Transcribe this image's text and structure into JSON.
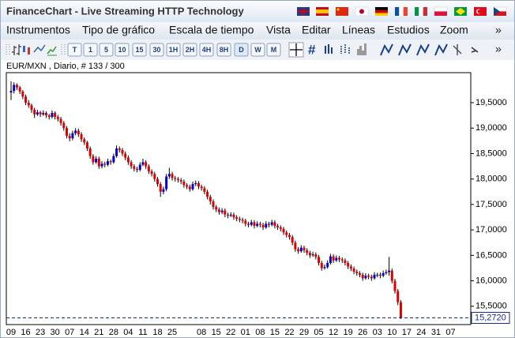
{
  "window": {
    "title": "FinanceChart - Live Streaming HTTP Technology"
  },
  "menu": [
    "Instrumentos",
    "Tipo de gráfico",
    "Escala de tiempo",
    "Vista",
    "Editar",
    "Líneas",
    "Estudios",
    "Zoom",
    "»"
  ],
  "toolbar": {
    "buttons": [
      "T",
      "1",
      "5",
      "10",
      "15",
      "30",
      "1H",
      "2H",
      "4H",
      "8H",
      "D",
      "W",
      "M"
    ],
    "more": "»"
  },
  "chart_data": {
    "type": "candlestick",
    "title": "EUR/MXN , Diario, # 133 / 300",
    "up_color": "#0000cc",
    "down_color": "#dd0000",
    "wick_color": "#000000",
    "ylim": [
      15.14,
      20.09
    ],
    "yticks": [
      {
        "value": 15.5,
        "label": "15,5000"
      },
      {
        "value": 16,
        "label": "16,0000"
      },
      {
        "value": 16.5,
        "label": "16,5000"
      },
      {
        "value": 17,
        "label": "17,0000"
      },
      {
        "value": 17.5,
        "label": "17,5000"
      },
      {
        "value": 18,
        "label": "18,0000"
      },
      {
        "value": 18.5,
        "label": "18,5000"
      },
      {
        "value": 19,
        "label": "19,0000"
      },
      {
        "value": 19.5,
        "label": "19,5000"
      }
    ],
    "last_price": {
      "value": 15.272,
      "label": "15,2720"
    },
    "categories": [
      "09",
      null,
      null,
      null,
      null,
      "16",
      null,
      null,
      null,
      null,
      "23",
      null,
      null,
      null,
      null,
      "30",
      null,
      null,
      null,
      null,
      "07",
      null,
      null,
      null,
      null,
      "14",
      null,
      null,
      null,
      null,
      "21",
      null,
      null,
      null,
      null,
      "28",
      null,
      null,
      null,
      null,
      "04",
      null,
      null,
      null,
      null,
      "11",
      null,
      null,
      null,
      null,
      "18",
      null,
      null,
      null,
      null,
      "25",
      null,
      null,
      null,
      null,
      null,
      null,
      null,
      null,
      null,
      "08",
      null,
      null,
      null,
      null,
      "15",
      null,
      null,
      null,
      null,
      "22",
      null,
      null,
      null,
      null,
      "01",
      null,
      null,
      null,
      null,
      "08",
      null,
      null,
      null,
      null,
      "15",
      null,
      null,
      null,
      null,
      "22",
      null,
      null,
      null,
      null,
      "29",
      null,
      null,
      null,
      null,
      "05",
      null,
      null,
      null,
      null,
      "12",
      null,
      null,
      null,
      null,
      "19",
      null,
      null,
      null,
      null,
      "26",
      null,
      null,
      null,
      null,
      "03",
      null,
      null,
      null,
      null,
      "10",
      null,
      null,
      null,
      null,
      "17",
      null,
      null,
      null,
      null,
      "24",
      null,
      null,
      null,
      null,
      "31",
      null,
      null,
      null,
      null,
      "07"
    ],
    "ohlc": [
      [
        19.7,
        19.92,
        19.55,
        19.73
      ],
      [
        19.73,
        19.9,
        19.68,
        19.85
      ],
      [
        19.85,
        19.88,
        19.75,
        19.8
      ],
      [
        19.8,
        19.83,
        19.67,
        19.72
      ],
      [
        19.72,
        19.75,
        19.57,
        19.62
      ],
      [
        19.62,
        19.66,
        19.45,
        19.5
      ],
      [
        19.5,
        19.55,
        19.4,
        19.45
      ],
      [
        19.45,
        19.48,
        19.3,
        19.36
      ],
      [
        19.36,
        19.4,
        19.2,
        19.27
      ],
      [
        19.27,
        19.36,
        19.24,
        19.31
      ],
      [
        19.31,
        19.34,
        19.22,
        19.27
      ],
      [
        19.27,
        19.35,
        19.24,
        19.3
      ],
      [
        19.3,
        19.33,
        19.2,
        19.25
      ],
      [
        19.25,
        19.28,
        19.17,
        19.22
      ],
      [
        19.22,
        19.35,
        19.19,
        19.3
      ],
      [
        19.3,
        19.33,
        19.17,
        19.22
      ],
      [
        19.22,
        19.26,
        19.13,
        19.18
      ],
      [
        19.18,
        19.22,
        19.05,
        19.1
      ],
      [
        19.1,
        19.14,
        18.95,
        19.0
      ],
      [
        19.0,
        19.04,
        18.8,
        18.85
      ],
      [
        18.85,
        18.9,
        18.74,
        18.8
      ],
      [
        18.8,
        18.95,
        18.76,
        18.9
      ],
      [
        18.9,
        19.0,
        18.86,
        18.95
      ],
      [
        18.95,
        18.99,
        18.83,
        18.88
      ],
      [
        18.88,
        18.92,
        18.73,
        18.78
      ],
      [
        18.78,
        18.82,
        18.67,
        18.72
      ],
      [
        18.72,
        18.75,
        18.55,
        18.6
      ],
      [
        18.6,
        18.64,
        18.4,
        18.45
      ],
      [
        18.45,
        18.49,
        18.28,
        18.33
      ],
      [
        18.33,
        18.45,
        18.3,
        18.4
      ],
      [
        18.4,
        18.44,
        18.2,
        18.25
      ],
      [
        18.25,
        18.35,
        18.21,
        18.3
      ],
      [
        18.3,
        18.34,
        18.23,
        18.28
      ],
      [
        18.28,
        18.4,
        18.25,
        18.35
      ],
      [
        18.35,
        18.38,
        18.28,
        18.33
      ],
      [
        18.33,
        18.5,
        18.3,
        18.45
      ],
      [
        18.45,
        18.66,
        18.42,
        18.6
      ],
      [
        18.6,
        18.64,
        18.52,
        18.57
      ],
      [
        18.57,
        18.61,
        18.45,
        18.5
      ],
      [
        18.5,
        18.54,
        18.37,
        18.42
      ],
      [
        18.42,
        18.46,
        18.28,
        18.33
      ],
      [
        18.33,
        18.37,
        18.2,
        18.25
      ],
      [
        18.25,
        18.29,
        18.15,
        18.2
      ],
      [
        18.2,
        18.24,
        18.13,
        18.18
      ],
      [
        18.18,
        18.33,
        18.15,
        18.28
      ],
      [
        18.28,
        18.4,
        18.25,
        18.33
      ],
      [
        18.33,
        18.37,
        18.2,
        18.25
      ],
      [
        18.25,
        18.29,
        18.1,
        18.15
      ],
      [
        18.15,
        18.19,
        18.05,
        18.1
      ],
      [
        18.1,
        18.14,
        17.95,
        18.0
      ],
      [
        18.0,
        18.04,
        17.85,
        17.9
      ],
      [
        17.9,
        17.94,
        17.65,
        17.75
      ],
      [
        17.75,
        17.85,
        17.7,
        17.8
      ],
      [
        17.8,
        18.1,
        17.76,
        18.05
      ],
      [
        18.05,
        18.22,
        18.0,
        18.1
      ],
      [
        18.1,
        18.14,
        17.97,
        18.02
      ],
      [
        18.02,
        18.06,
        17.95,
        18.0
      ],
      [
        18.0,
        18.04,
        17.93,
        17.98
      ],
      [
        17.98,
        18.02,
        17.9,
        17.95
      ],
      [
        17.95,
        17.99,
        17.83,
        17.88
      ],
      [
        17.88,
        17.92,
        17.8,
        17.85
      ],
      [
        17.85,
        17.89,
        17.75,
        17.8
      ],
      [
        17.8,
        17.95,
        17.77,
        17.9
      ],
      [
        17.9,
        17.97,
        17.86,
        17.92
      ],
      [
        17.92,
        17.96,
        17.8,
        17.85
      ],
      [
        17.85,
        17.89,
        17.77,
        17.82
      ],
      [
        17.82,
        17.86,
        17.7,
        17.75
      ],
      [
        17.75,
        17.79,
        17.6,
        17.65
      ],
      [
        17.65,
        17.69,
        17.5,
        17.56
      ],
      [
        17.56,
        17.6,
        17.4,
        17.45
      ],
      [
        17.45,
        17.49,
        17.35,
        17.4
      ],
      [
        17.4,
        17.44,
        17.3,
        17.35
      ],
      [
        17.35,
        17.43,
        17.31,
        17.38
      ],
      [
        17.38,
        17.42,
        17.25,
        17.3
      ],
      [
        17.3,
        17.34,
        17.23,
        17.28
      ],
      [
        17.28,
        17.35,
        17.25,
        17.3
      ],
      [
        17.3,
        17.34,
        17.2,
        17.25
      ],
      [
        17.25,
        17.29,
        17.17,
        17.22
      ],
      [
        17.22,
        17.26,
        17.15,
        17.2
      ],
      [
        17.2,
        17.24,
        17.13,
        17.18
      ],
      [
        17.18,
        17.22,
        17.07,
        17.12
      ],
      [
        17.12,
        17.16,
        17.05,
        17.1
      ],
      [
        17.1,
        17.2,
        17.07,
        17.15
      ],
      [
        17.15,
        17.19,
        17.03,
        17.08
      ],
      [
        17.08,
        17.17,
        17.05,
        17.12
      ],
      [
        17.12,
        17.16,
        17.05,
        17.1
      ],
      [
        17.1,
        17.14,
        17.0,
        17.05
      ],
      [
        17.05,
        17.17,
        17.02,
        17.12
      ],
      [
        17.12,
        17.16,
        17.05,
        17.1
      ],
      [
        17.1,
        17.2,
        17.07,
        17.15
      ],
      [
        17.15,
        17.19,
        17.03,
        17.08
      ],
      [
        17.08,
        17.12,
        17.0,
        17.05
      ],
      [
        17.05,
        17.09,
        16.97,
        17.02
      ],
      [
        17.02,
        17.06,
        16.9,
        16.95
      ],
      [
        16.95,
        16.99,
        16.85,
        16.9
      ],
      [
        16.9,
        16.94,
        16.81,
        16.86
      ],
      [
        16.86,
        16.9,
        16.7,
        16.75
      ],
      [
        16.75,
        16.79,
        16.57,
        16.62
      ],
      [
        16.62,
        16.66,
        16.53,
        16.58
      ],
      [
        16.58,
        16.7,
        16.55,
        16.65
      ],
      [
        16.65,
        16.69,
        16.55,
        16.6
      ],
      [
        16.6,
        16.64,
        16.5,
        16.55
      ],
      [
        16.55,
        16.59,
        16.45,
        16.5
      ],
      [
        16.5,
        16.57,
        16.47,
        16.52
      ],
      [
        16.52,
        16.56,
        16.42,
        16.47
      ],
      [
        16.47,
        16.51,
        16.3,
        16.35
      ],
      [
        16.35,
        16.39,
        16.2,
        16.25
      ],
      [
        16.25,
        16.32,
        16.22,
        16.27
      ],
      [
        16.27,
        16.4,
        16.24,
        16.35
      ],
      [
        16.35,
        16.53,
        16.32,
        16.48
      ],
      [
        16.48,
        16.52,
        16.35,
        16.4
      ],
      [
        16.4,
        16.5,
        16.37,
        16.45
      ],
      [
        16.45,
        16.49,
        16.37,
        16.42
      ],
      [
        16.42,
        16.46,
        16.35,
        16.4
      ],
      [
        16.4,
        16.44,
        16.3,
        16.35
      ],
      [
        16.35,
        16.39,
        16.23,
        16.28
      ],
      [
        16.28,
        16.32,
        16.19,
        16.24
      ],
      [
        16.24,
        16.28,
        16.13,
        16.18
      ],
      [
        16.18,
        16.22,
        16.1,
        16.15
      ],
      [
        16.15,
        16.19,
        16.07,
        16.12
      ],
      [
        16.12,
        16.16,
        16.0,
        16.05
      ],
      [
        16.05,
        16.15,
        16.02,
        16.1
      ],
      [
        16.1,
        16.14,
        16.03,
        16.08
      ],
      [
        16.08,
        16.12,
        16.0,
        16.05
      ],
      [
        16.05,
        16.17,
        16.02,
        16.12
      ],
      [
        16.12,
        16.16,
        16.07,
        16.12
      ],
      [
        16.12,
        16.16,
        16.05,
        16.1
      ],
      [
        16.1,
        16.2,
        16.07,
        16.15
      ],
      [
        16.15,
        16.22,
        16.12,
        16.17
      ],
      [
        16.17,
        16.47,
        16.1,
        16.2
      ],
      [
        16.2,
        16.24,
        15.95,
        16.0
      ],
      [
        16.0,
        16.04,
        15.75,
        15.8
      ],
      [
        15.8,
        15.84,
        15.52,
        15.58
      ],
      [
        15.58,
        15.62,
        15.25,
        15.272
      ],
      null,
      null,
      null,
      null,
      null,
      null,
      null,
      null,
      null,
      null,
      null,
      null,
      null,
      null,
      null,
      null,
      null
    ]
  }
}
